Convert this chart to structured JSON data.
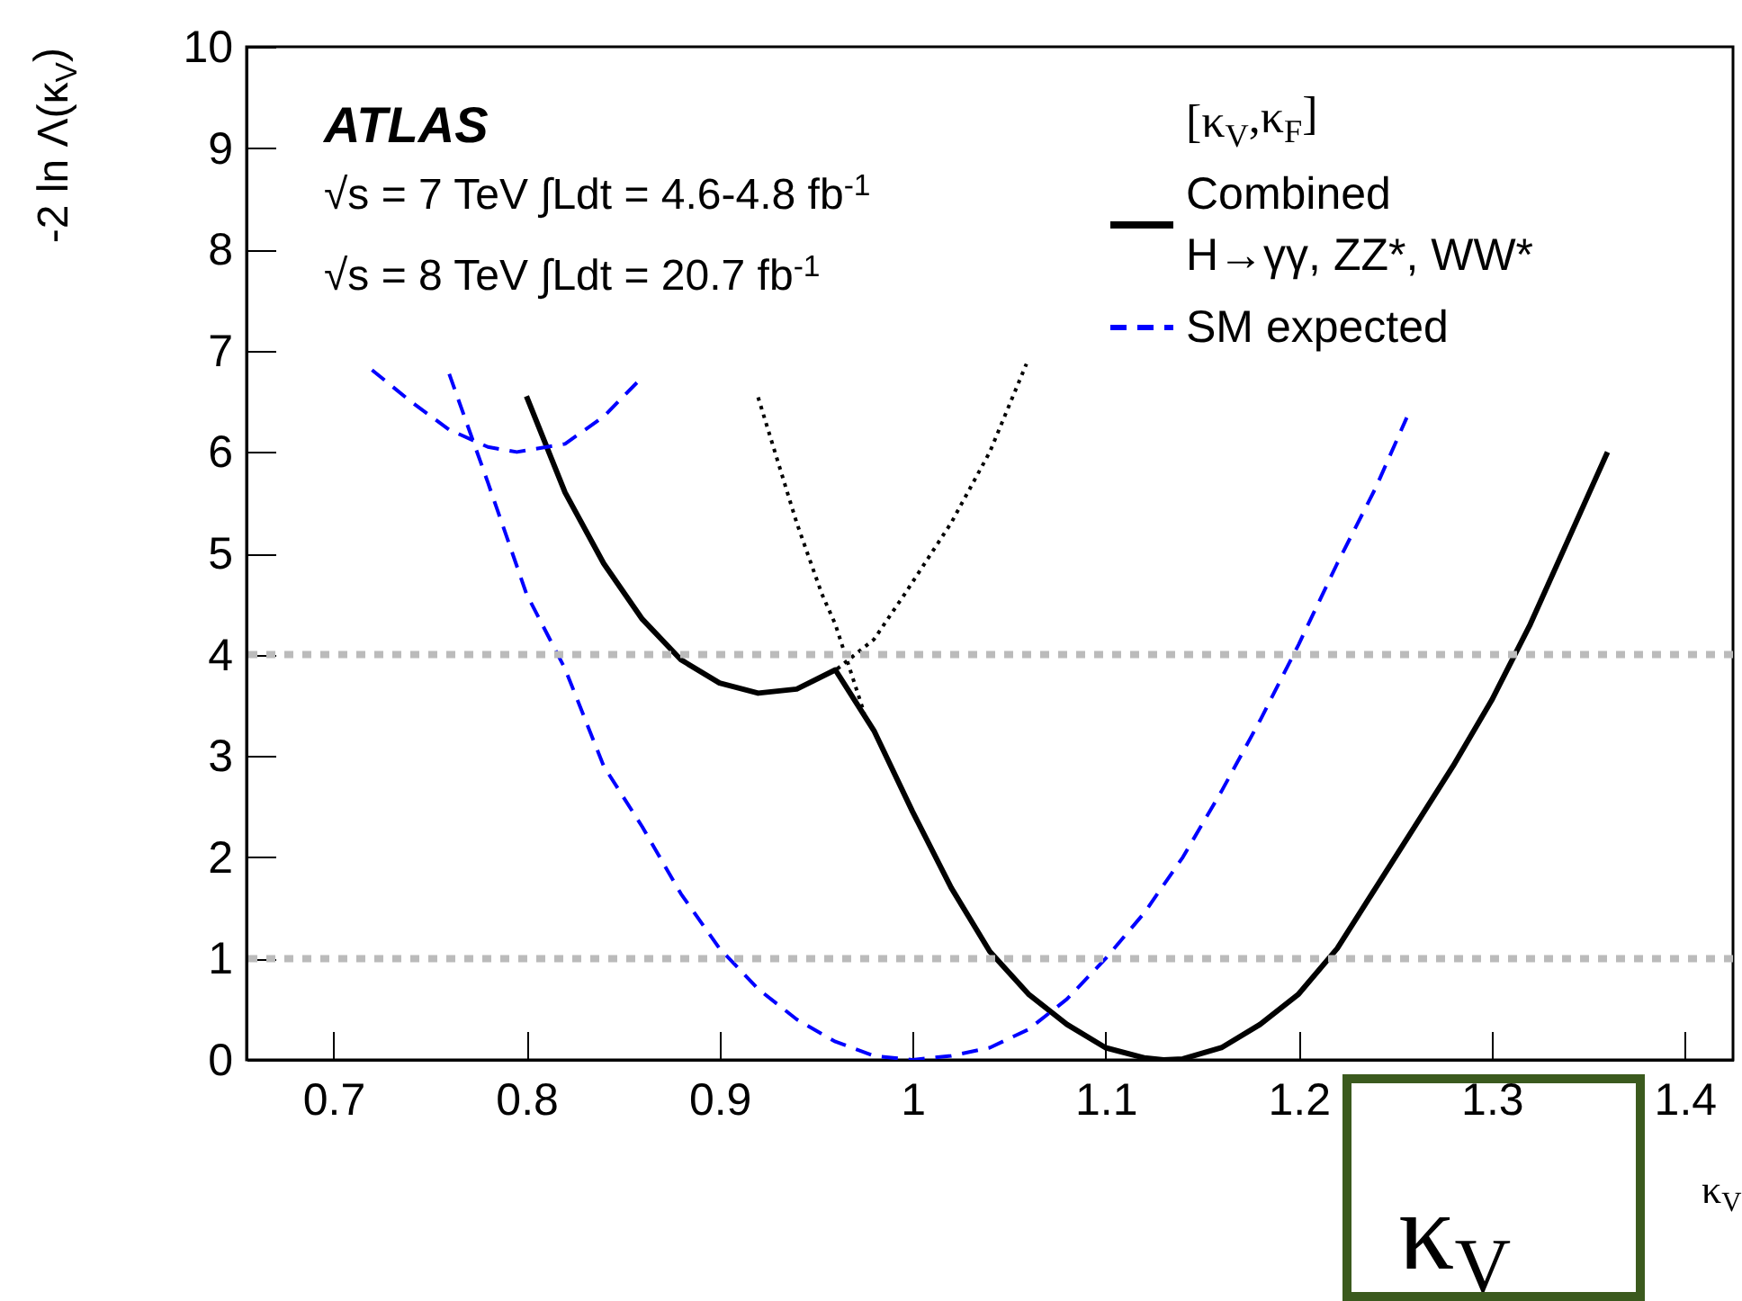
{
  "chart_data": {
    "type": "line",
    "xlabel": "κ$_{V}$",
    "ylabel": "-2 ln Λ(κ$_{V}$)",
    "legend_title": "[κ$_{V}$,κ$_{F}$]",
    "annotations": [
      "ATLAS",
      "√s = 7 TeV ∫Ldt = 4.6-4.8 fb$^{-1}$",
      "√s = 8 TeV ∫Ldt = 20.7 fb$^{-1}$",
      "κ$_{V}$"
    ],
    "xlim": [
      0.655,
      1.425
    ],
    "xticks": [
      0.7,
      0.8,
      0.9,
      {
        "value": 1,
        "label": "1"
      },
      1.1,
      1.2,
      1.3,
      1.4
    ],
    "ylim": [
      0,
      10
    ],
    "yticks": [
      0,
      1,
      2,
      3,
      4,
      5,
      6,
      7,
      8,
      9,
      10
    ],
    "legend": "top right",
    "ref_lines": [
      {
        "axis": "y",
        "value": 4,
        "color": "#bbbbbb",
        "line_style": "dotted"
      },
      {
        "axis": "y",
        "value": 1,
        "color": "#bbbbbb",
        "line_style": "dotted"
      }
    ],
    "series": [
      {
        "name": "Combined H→γγ, ZZ*, WW*",
        "color": "#000000",
        "line_style": "solid",
        "x": [
          0.8,
          0.82,
          0.84,
          0.86,
          0.88,
          0.9,
          0.92,
          0.94,
          0.96,
          0.98,
          1.0,
          1.02,
          1.04,
          1.06,
          1.08,
          1.1,
          1.12,
          1.13,
          1.14,
          1.16,
          1.18,
          1.2,
          1.22,
          1.24,
          1.26,
          1.28,
          1.3,
          1.32,
          1.34,
          1.36
        ],
        "values": [
          6.55,
          5.6,
          4.9,
          4.35,
          3.95,
          3.72,
          3.62,
          3.66,
          3.85,
          3.25,
          2.45,
          1.7,
          1.07,
          0.65,
          0.35,
          0.12,
          0.02,
          0.0,
          0.01,
          0.12,
          0.35,
          0.65,
          1.1,
          1.7,
          2.3,
          2.9,
          3.55,
          4.3,
          5.15,
          6.0
        ]
      },
      {
        "name": "SM expected",
        "color": "#0000ff",
        "line_style": "dashed",
        "x": [
          0.76,
          0.78,
          0.8,
          0.82,
          0.84,
          0.86,
          0.88,
          0.9,
          0.92,
          0.94,
          0.96,
          0.98,
          1.0,
          1.02,
          1.04,
          1.06,
          1.08,
          1.1,
          1.12,
          1.14,
          1.16,
          1.18,
          1.2,
          1.22,
          1.24,
          1.256
        ],
        "values": [
          6.77,
          5.7,
          4.6,
          3.86,
          2.9,
          2.3,
          1.64,
          1.1,
          0.7,
          0.4,
          0.18,
          0.04,
          0.0,
          0.04,
          0.12,
          0.3,
          0.6,
          1.0,
          1.45,
          2.0,
          2.65,
          3.35,
          4.1,
          4.9,
          5.65,
          6.34
        ]
      },
      {
        "color": "#0000ff",
        "line_style": "dashed",
        "x": [
          0.72,
          0.74,
          0.76,
          0.78,
          0.795,
          0.82,
          0.84,
          0.858
        ],
        "values": [
          6.81,
          6.5,
          6.22,
          6.05,
          6.0,
          6.08,
          6.35,
          6.7
        ]
      },
      {
        "color": "#000000",
        "line_style": "dotted",
        "x": [
          0.92,
          0.94,
          0.953,
          0.96,
          0.975
        ],
        "values": [
          6.54,
          5.3,
          4.6,
          4.3,
          3.42
        ]
      },
      {
        "color": "#000000",
        "line_style": "dotted",
        "x": [
          0.961,
          0.98,
          0.996,
          1.02,
          1.04,
          1.059
        ],
        "values": [
          3.86,
          4.15,
          4.6,
          5.3,
          6.0,
          6.87
        ]
      }
    ]
  }
}
